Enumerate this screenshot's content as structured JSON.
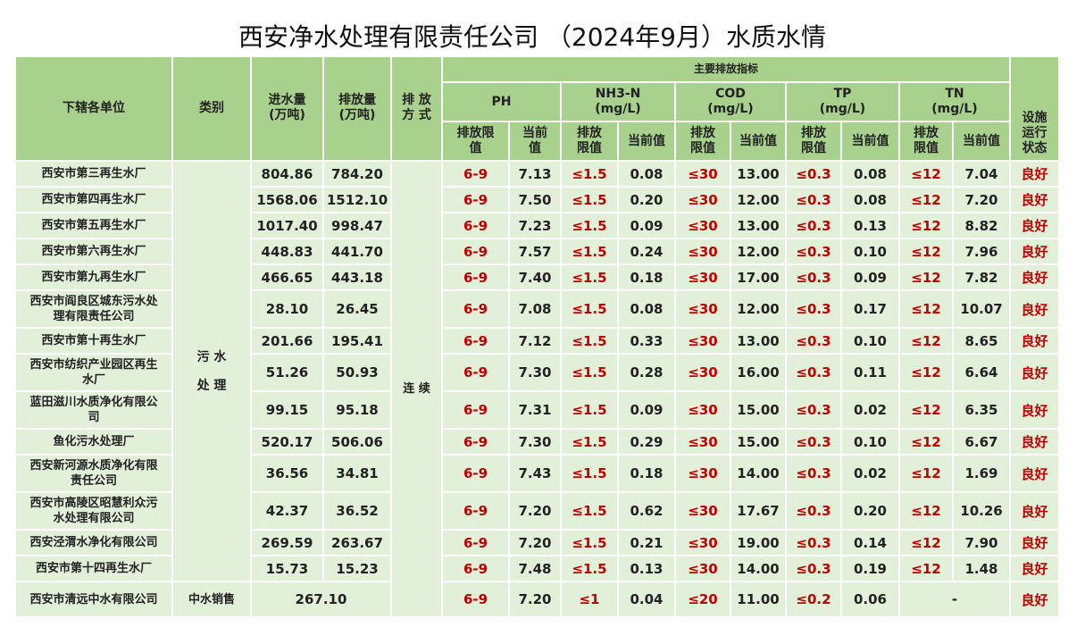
{
  "title": "西安净水处理有限责任公司 （2024年9月）水质水情",
  "header": {
    "unit_col": "下辖各单位",
    "category_col": "类别",
    "inflow_label": "进水量",
    "inflow_unit": "(万吨)",
    "discharge_label": "排放量",
    "discharge_unit": "(万吨)",
    "mode_label1": "排 放",
    "mode_label2": "方 式",
    "main_indicators": "主要排放指标",
    "status_label1": "设施",
    "status_label2": "运行",
    "status_label3": "状态",
    "ph": "PH",
    "nh3n": "NH3-N",
    "nh3n_unit": "(mg/L)",
    "cod": "COD",
    "cod_unit": "(mg/L)",
    "tp": "TP",
    "tp_unit": "(mg/L)",
    "tn": "TN",
    "tn_unit": "(mg/L)",
    "ph_limit1": "排放限",
    "ph_limit2": "值",
    "ph_current1": "当前",
    "ph_current2": "值",
    "limit1": "排放",
    "limit2": "限值",
    "current": "当前值"
  },
  "category_sewage1": "污 水",
  "category_sewage2": "处 理",
  "mode_continuous": "连 续",
  "rows": [
    {
      "name": "西安市第三再生水厂",
      "inflow": "804.86",
      "discharge": "784.20",
      "ph_limit": "6-9",
      "ph": "7.13",
      "nh3_limit": "≤1.5",
      "nh3": "0.08",
      "cod_limit": "≤30",
      "cod": "13.00",
      "tp_limit": "≤0.3",
      "tp": "0.08",
      "tn_limit": "≤12",
      "tn": "7.04",
      "status": "良好"
    },
    {
      "name": "西安市第四再生水厂",
      "inflow": "1568.06",
      "discharge": "1512.10",
      "ph_limit": "6-9",
      "ph": "7.50",
      "nh3_limit": "≤1.5",
      "nh3": "0.20",
      "cod_limit": "≤30",
      "cod": "12.00",
      "tp_limit": "≤0.3",
      "tp": "0.08",
      "tn_limit": "≤12",
      "tn": "7.20",
      "status": "良好"
    },
    {
      "name": "西安市第五再生水厂",
      "inflow": "1017.40",
      "discharge": "998.47",
      "ph_limit": "6-9",
      "ph": "7.23",
      "nh3_limit": "≤1.5",
      "nh3": "0.09",
      "cod_limit": "≤30",
      "cod": "13.00",
      "tp_limit": "≤0.3",
      "tp": "0.13",
      "tn_limit": "≤12",
      "tn": "8.82",
      "status": "良好"
    },
    {
      "name": "西安市第六再生水厂",
      "inflow": "448.83",
      "discharge": "441.70",
      "ph_limit": "6-9",
      "ph": "7.57",
      "nh3_limit": "≤1.5",
      "nh3": "0.24",
      "cod_limit": "≤30",
      "cod": "12.00",
      "tp_limit": "≤0.3",
      "tp": "0.10",
      "tn_limit": "≤12",
      "tn": "7.96",
      "status": "良好"
    },
    {
      "name": "西安市第九再生水厂",
      "inflow": "466.65",
      "discharge": "443.18",
      "ph_limit": "6-9",
      "ph": "7.40",
      "nh3_limit": "≤1.5",
      "nh3": "0.18",
      "cod_limit": "≤30",
      "cod": "17.00",
      "tp_limit": "≤0.3",
      "tp": "0.09",
      "tn_limit": "≤12",
      "tn": "7.82",
      "status": "良好"
    },
    {
      "name1": "西安市阎良区城东污水处",
      "name2": "理有限责任公司",
      "inflow": "28.10",
      "discharge": "26.45",
      "ph_limit": "6-9",
      "ph": "7.08",
      "nh3_limit": "≤1.5",
      "nh3": "0.08",
      "cod_limit": "≤30",
      "cod": "12.00",
      "tp_limit": "≤0.3",
      "tp": "0.17",
      "tn_limit": "≤12",
      "tn": "10.07",
      "status": "良好"
    },
    {
      "name": "西安市第十再生水厂",
      "inflow": "201.66",
      "discharge": "195.41",
      "ph_limit": "6-9",
      "ph": "7.12",
      "nh3_limit": "≤1.5",
      "nh3": "0.33",
      "cod_limit": "≤30",
      "cod": "13.00",
      "tp_limit": "≤0.3",
      "tp": "0.10",
      "tn_limit": "≤12",
      "tn": "8.65",
      "status": "良好"
    },
    {
      "name1": "西安市纺织产业园区再生",
      "name2": "水厂",
      "inflow": "51.26",
      "discharge": "50.93",
      "ph_limit": "6-9",
      "ph": "7.30",
      "nh3_limit": "≤1.5",
      "nh3": "0.28",
      "cod_limit": "≤30",
      "cod": "16.00",
      "tp_limit": "≤0.3",
      "tp": "0.11",
      "tn_limit": "≤12",
      "tn": "6.64",
      "status": "良好"
    },
    {
      "name1": "蓝田滋川水质净化有限公",
      "name2": "司",
      "inflow": "99.15",
      "discharge": "95.18",
      "ph_limit": "6-9",
      "ph": "7.31",
      "nh3_limit": "≤1.5",
      "nh3": "0.09",
      "cod_limit": "≤30",
      "cod": "15.00",
      "tp_limit": "≤0.3",
      "tp": "0.02",
      "tn_limit": "≤12",
      "tn": "6.35",
      "status": "良好"
    },
    {
      "name": "鱼化污水处理厂",
      "inflow": "520.17",
      "discharge": "506.06",
      "ph_limit": "6-9",
      "ph": "7.30",
      "nh3_limit": "≤1.5",
      "nh3": "0.29",
      "cod_limit": "≤30",
      "cod": "15.00",
      "tp_limit": "≤0.3",
      "tp": "0.10",
      "tn_limit": "≤12",
      "tn": "6.67",
      "status": "良好"
    },
    {
      "name1": "西安新河源水质净化有限",
      "name2": "责任公司",
      "inflow": "36.56",
      "discharge": "34.81",
      "ph_limit": "6-9",
      "ph": "7.43",
      "nh3_limit": "≤1.5",
      "nh3": "0.18",
      "cod_limit": "≤30",
      "cod": "14.00",
      "tp_limit": "≤0.3",
      "tp": "0.02",
      "tn_limit": "≤12",
      "tn": "1.69",
      "status": "良好"
    },
    {
      "name1": "西安市高陵区昭慧利众污",
      "name2": "水处理有限公司",
      "inflow": "42.37",
      "discharge": "36.52",
      "ph_limit": "6-9",
      "ph": "7.20",
      "nh3_limit": "≤1.5",
      "nh3": "0.62",
      "cod_limit": "≤30",
      "cod": "17.67",
      "tp_limit": "≤0.3",
      "tp": "0.20",
      "tn_limit": "≤12",
      "tn": "10.26",
      "status": "良好"
    },
    {
      "name": "西安泾渭水净化有限公司",
      "inflow": "269.59",
      "discharge": "263.67",
      "ph_limit": "6-9",
      "ph": "7.20",
      "nh3_limit": "≤1.5",
      "nh3": "0.21",
      "cod_limit": "≤30",
      "cod": "19.00",
      "tp_limit": "≤0.3",
      "tp": "0.14",
      "tn_limit": "≤12",
      "tn": "7.90",
      "status": "良好"
    },
    {
      "name": "西安市第十四再生水厂",
      "inflow": "15.73",
      "discharge": "15.23",
      "ph_limit": "6-9",
      "ph": "7.48",
      "nh3_limit": "≤1.5",
      "nh3": "0.13",
      "cod_limit": "≤30",
      "cod": "14.00",
      "tp_limit": "≤0.3",
      "tp": "0.19",
      "tn_limit": "≤12",
      "tn": "1.48",
      "status": "良好"
    }
  ],
  "last_row": {
    "name": "西安市清远中水有限公司",
    "category": "中水销售",
    "volume": "267.10",
    "ph_limit": "6-9",
    "ph": "7.20",
    "nh3_limit": "≤1",
    "nh3": "0.04",
    "cod_limit": "≤20",
    "cod": "11.00",
    "tp_limit": "≤0.2",
    "tp": "0.06",
    "tn": "-",
    "status": "良好"
  },
  "colors": {
    "header_bg": "#a9d18e",
    "cell_bg": "#e2efd9",
    "limit_red": "#c00000"
  }
}
